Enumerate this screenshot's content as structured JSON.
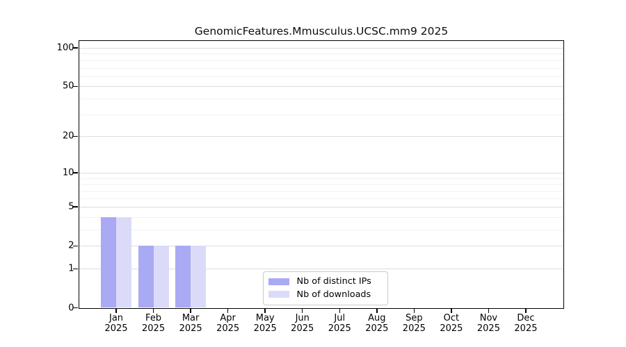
{
  "title": "GenomicFeatures.Mmusculus.UCSC.mm9 2025",
  "chart_data": {
    "type": "bar",
    "title": "GenomicFeatures.Mmusculus.UCSC.mm9 2025",
    "categories": [
      "Jan",
      "Feb",
      "Mar",
      "Apr",
      "May",
      "Jun",
      "Jul",
      "Aug",
      "Sep",
      "Oct",
      "Nov",
      "Dec"
    ],
    "category_year": "2025",
    "series": [
      {
        "name": "Nb of distinct IPs",
        "color": "#a9a9f4",
        "values": [
          4,
          2,
          2,
          0,
          0,
          0,
          0,
          0,
          0,
          0,
          0,
          0
        ]
      },
      {
        "name": "Nb of downloads",
        "color": "#dbdbf9",
        "values": [
          4,
          2,
          2,
          0,
          0,
          0,
          0,
          0,
          0,
          0,
          0,
          0
        ]
      }
    ],
    "xlabel": "",
    "ylabel": "",
    "yscale": "log1p",
    "ylim": [
      0,
      114
    ],
    "y_tick_values": [
      0,
      1,
      2,
      5,
      10,
      20,
      50,
      100
    ],
    "y_minor_gridlines": [
      3,
      4,
      6,
      7,
      8,
      9,
      30,
      40,
      60,
      70,
      80,
      90
    ],
    "grid": true,
    "legend_position": "lower-center-inside"
  },
  "colors": {
    "major_grid": "#dcdcdc",
    "minor_grid": "#f1f1f1",
    "axis": "#000000",
    "legend_border": "#c9c9c9",
    "background": "#ffffff"
  }
}
